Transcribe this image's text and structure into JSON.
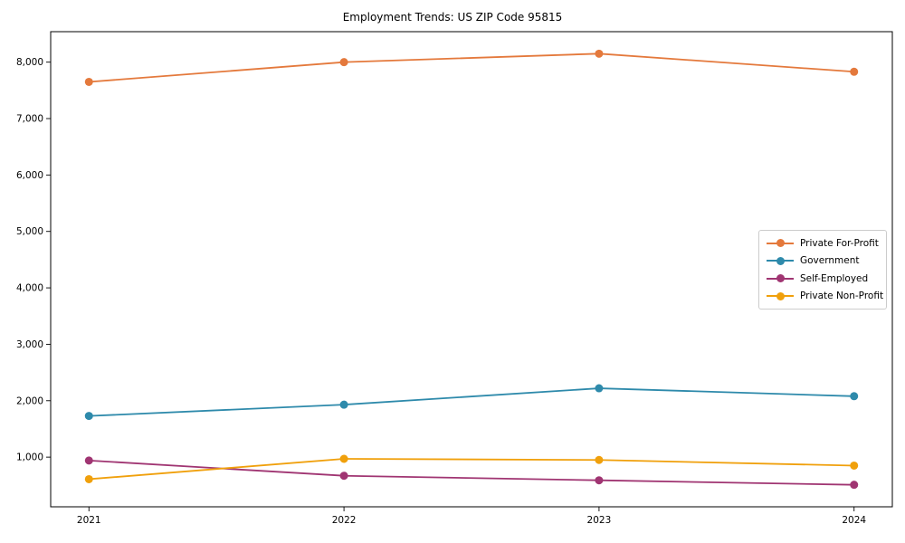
{
  "title": "Employment Trends: US ZIP Code 95815",
  "chart_data": {
    "type": "line",
    "x": [
      2021,
      2022,
      2023,
      2024
    ],
    "categories": [
      "2021",
      "2022",
      "2023",
      "2024"
    ],
    "series": [
      {
        "name": "Private For-Profit",
        "color": "#e4793c",
        "values": [
          7650,
          8000,
          8150,
          7830
        ]
      },
      {
        "name": "Government",
        "color": "#2e8aab",
        "values": [
          1730,
          1930,
          2220,
          2080
        ]
      },
      {
        "name": "Self-Employed",
        "color": "#a03572",
        "values": [
          940,
          670,
          590,
          510
        ]
      },
      {
        "name": "Private Non-Profit",
        "color": "#f0a00c",
        "values": [
          610,
          970,
          950,
          850
        ]
      }
    ],
    "yticks": [
      1000,
      2000,
      3000,
      4000,
      5000,
      6000,
      7000,
      8000
    ],
    "ytick_labels": [
      "1,000",
      "2,000",
      "3,000",
      "4,000",
      "5,000",
      "6,000",
      "7,000",
      "8,000"
    ],
    "xlim": [
      2020.85,
      2024.15
    ],
    "ylim": [
      120,
      8540
    ],
    "grid": false,
    "legend_position": "center right",
    "marker": "circle",
    "axis_color": "#000000"
  }
}
